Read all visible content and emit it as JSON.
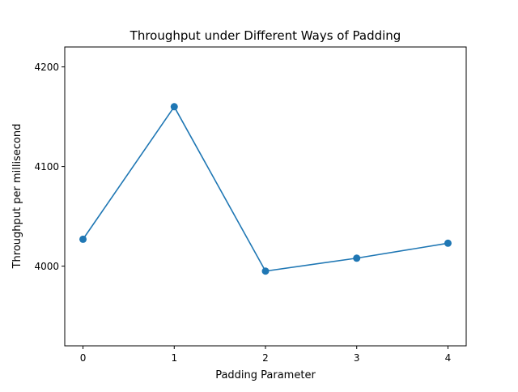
{
  "chart_data": {
    "type": "line",
    "title": "Throughput under Different Ways of Padding",
    "xlabel": "Padding Parameter",
    "ylabel": "Throughput per millisecond",
    "x": [
      0,
      1,
      2,
      3,
      4
    ],
    "series": [
      {
        "values": [
          4027,
          4160,
          3995,
          4008,
          4023
        ],
        "color": "#1f77b4",
        "marker": "circle"
      }
    ],
    "xticks": [
      0,
      1,
      2,
      3,
      4
    ],
    "yticks": [
      4000,
      4100,
      4200
    ],
    "xlim": [
      -0.2,
      4.2
    ],
    "ylim": [
      3920,
      4220
    ],
    "grid": false
  }
}
